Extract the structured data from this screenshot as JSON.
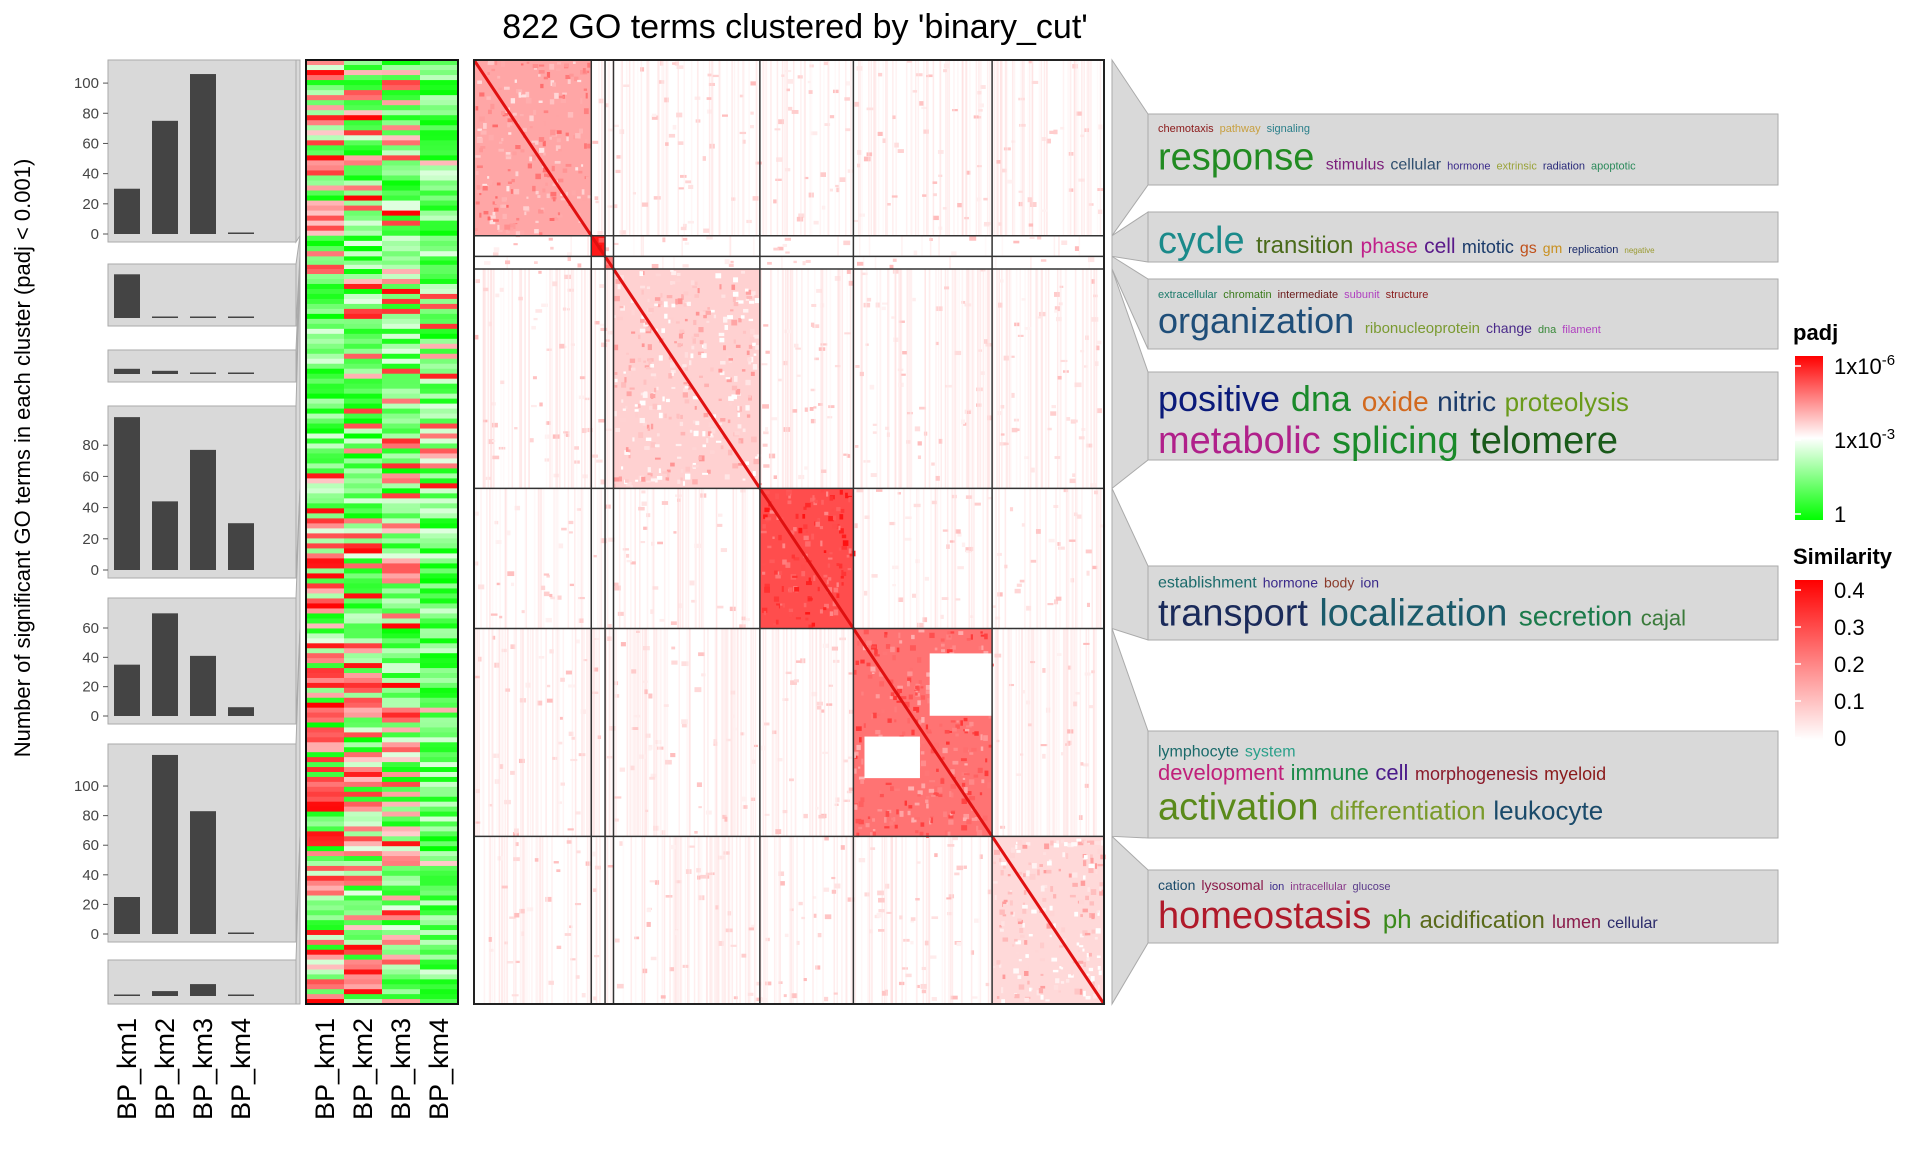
{
  "chart_data": {
    "type": "heatmap",
    "title": "822 GO terms clustered by 'binary_cut'",
    "columns": [
      "BP_km1",
      "BP_km2",
      "BP_km3",
      "BP_km4"
    ],
    "barplot": {
      "ylabel": "Number of significant GO terms in each cluster (padj < 0.001)",
      "clusters": [
        {
          "values": [
            30,
            75,
            106,
            1
          ],
          "ticks": [
            0,
            20,
            40,
            60,
            80,
            100
          ],
          "ylim": [
            0,
            110
          ]
        },
        {
          "values": [
            38,
            1,
            1,
            1
          ],
          "ticks": [],
          "ylim": [
            0,
            40
          ]
        },
        {
          "values": [
            13,
            8,
            2,
            3
          ],
          "ticks": [],
          "ylim": [
            0,
            40
          ]
        },
        {
          "values": [
            98,
            44,
            77,
            30
          ],
          "ticks": [
            0,
            20,
            40,
            60,
            80
          ],
          "ylim": [
            0,
            100
          ]
        },
        {
          "values": [
            35,
            70,
            41,
            6
          ],
          "ticks": [
            0,
            20,
            40,
            60
          ],
          "ylim": [
            0,
            75
          ]
        },
        {
          "values": [
            25,
            121,
            83,
            1
          ],
          "ticks": [
            0,
            20,
            40,
            60,
            80,
            100
          ],
          "ylim": [
            0,
            123
          ]
        },
        {
          "values": [
            1,
            7,
            17,
            1
          ],
          "ticks": [],
          "ylim": [
            0,
            40
          ]
        }
      ]
    },
    "cluster_sizes": [
      153,
      18,
      11,
      191,
      122,
      181,
      146
    ],
    "legend_padj": {
      "title": "padj",
      "labels": [
        "1x10-6",
        "1x10-3",
        "1"
      ],
      "colors": [
        "#ff0000",
        "#ffffff",
        "#00ff00"
      ]
    },
    "legend_similarity": {
      "title": "Similarity",
      "labels": [
        "0.4",
        "0.3",
        "0.2",
        "0.1",
        "0"
      ],
      "range": [
        0,
        0.4
      ],
      "colors": [
        "#ffffff",
        "#ff0000"
      ]
    },
    "wordclouds": [
      {
        "lines": [
          [
            [
              "chemotaxis",
              11,
              "#8b1a1a"
            ],
            [
              "pathway",
              11,
              "#c8a040"
            ],
            [
              "signaling",
              11,
              "#2a7f8a"
            ]
          ],
          [
            [
              "response",
              38,
              "#228b22"
            ],
            [
              "stimulus",
              16,
              "#7b1f7b"
            ],
            [
              "cellular",
              16,
              "#2f4f6f"
            ],
            [
              "hormone",
              11,
              "#3a2a8a"
            ],
            [
              "extrinsic",
              11,
              "#9aa33a"
            ],
            [
              "radiation",
              11,
              "#2a2a7a"
            ],
            [
              "apoptotic",
              11,
              "#2a8a5a"
            ]
          ]
        ]
      },
      {
        "lines": [
          [
            [
              "cycle",
              38,
              "#1a8a8a"
            ],
            [
              "transition",
              24,
              "#4a6a1a"
            ],
            [
              "phase",
              21,
              "#c0208a"
            ],
            [
              "cell",
              21,
              "#5a1a8a"
            ],
            [
              "mitotic",
              18,
              "#1a3a6a"
            ],
            [
              "gs",
              16,
              "#c0501a"
            ],
            [
              "gm",
              14,
              "#c89020"
            ],
            [
              "replication",
              11,
              "#1a2a6a"
            ],
            [
              "negative",
              8,
              "#9a9a30"
            ]
          ]
        ]
      },
      {
        "lines": [
          [
            [
              "extracellular",
              11,
              "#1a7a6a"
            ],
            [
              "chromatin",
              11,
              "#3a7a1a"
            ],
            [
              "intermediate",
              11,
              "#6a1a1a"
            ],
            [
              "subunit",
              11,
              "#b040c0"
            ],
            [
              "structure",
              11,
              "#8a1a1a"
            ]
          ],
          [
            [
              "organization",
              36,
              "#1f4e79"
            ],
            [
              "ribonucleoprotein",
              15,
              "#7a9a30"
            ],
            [
              "change",
              14,
              "#4a2a8a"
            ],
            [
              "dna",
              11,
              "#3a8a3a"
            ],
            [
              "filament",
              11,
              "#b040c0"
            ]
          ]
        ]
      },
      {
        "lines": [
          [
            [
              "positive",
              36,
              "#0a1a7a"
            ],
            [
              "dna",
              36,
              "#1a8a2a"
            ],
            [
              "oxide",
              28,
              "#d2691e"
            ],
            [
              "nitric",
              28,
              "#1a3a6a"
            ],
            [
              "proteolysis",
              26,
              "#6a9a1a"
            ]
          ],
          [
            [
              "metabolic",
              38,
              "#b0208a"
            ],
            [
              "splicing",
              38,
              "#1a8a2a"
            ],
            [
              "telomere",
              38,
              "#1a5a1a"
            ]
          ]
        ]
      },
      {
        "lines": [
          [
            [
              "establishment",
              16,
              "#1a6a6a"
            ],
            [
              "hormone",
              14,
              "#3a2a8a"
            ],
            [
              "body",
              14,
              "#8a3a2a"
            ],
            [
              "ion",
              14,
              "#3a2a8a"
            ]
          ],
          [
            [
              "transport",
              38,
              "#1a2a5a"
            ],
            [
              "localization",
              38,
              "#1a5a6a"
            ],
            [
              "secretion",
              28,
              "#1a7a4a"
            ],
            [
              "cajal",
              22,
              "#3a7a3a"
            ]
          ]
        ]
      },
      {
        "lines": [
          [
            [
              "lymphocyte",
              16,
              "#1a6a6a"
            ],
            [
              "system",
              16,
              "#2aa08a"
            ]
          ],
          [
            [
              "development",
              22,
              "#c0207a"
            ],
            [
              "immune",
              22,
              "#1a8a4a"
            ],
            [
              "cell",
              22,
              "#4a1a8a"
            ],
            [
              "morphogenesis",
              18,
              "#8a1a2a"
            ],
            [
              "myeloid",
              18,
              "#8a1a1a"
            ]
          ],
          [
            [
              "activation",
              38,
              "#5a8a1a"
            ],
            [
              "differentiation",
              26,
              "#7a9a2a"
            ],
            [
              "leukocyte",
              26,
              "#1a4a6a"
            ]
          ]
        ]
      },
      {
        "lines": [
          [
            [
              "cation",
              14,
              "#1a4a6a"
            ],
            [
              "lysosomal",
              14,
              "#8a1a4a"
            ],
            [
              "ion",
              11,
              "#3a2a8a"
            ],
            [
              "intracellular",
              11,
              "#8a3a8a"
            ],
            [
              "glucose",
              11,
              "#5a3a8a"
            ]
          ],
          [
            [
              "homeostasis",
              38,
              "#b01a2a"
            ],
            [
              "ph",
              26,
              "#3a8a1a"
            ],
            [
              "acidification",
              24,
              "#5a6a1a"
            ],
            [
              "lumen",
              18,
              "#8a1a4a"
            ],
            [
              "cellular",
              16,
              "#2a2a6a"
            ]
          ]
        ]
      }
    ]
  }
}
